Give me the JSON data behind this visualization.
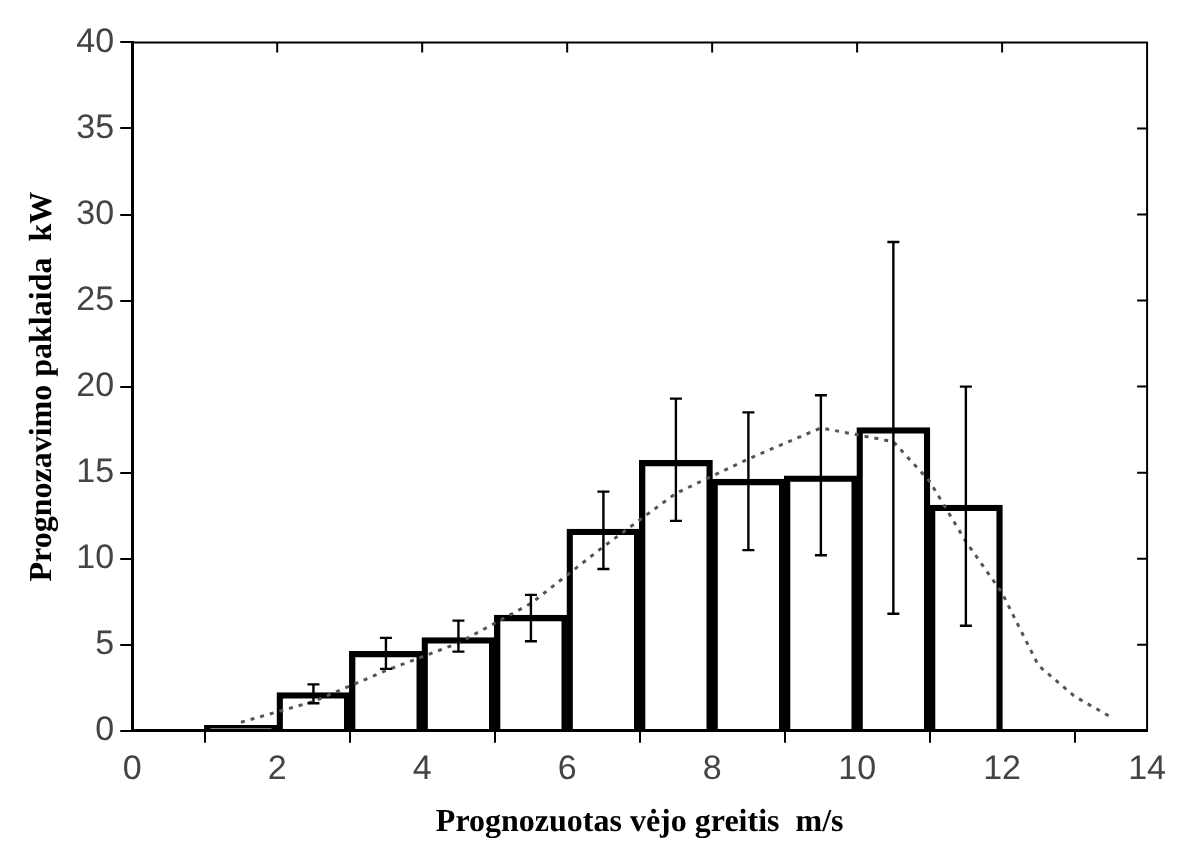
{
  "chart_data": {
    "type": "bar",
    "xlabel": "Prognozuotas vėjo greitis  m/s",
    "ylabel": "Prognozavimo paklaida  kW",
    "series": [
      {
        "color": "#000000",
        "x": [
          1.5,
          2.5,
          3.5,
          4.5,
          5.5,
          6.5,
          7.5,
          8.5,
          9.5,
          10.5,
          11.5
        ],
        "values": [
          0.3,
          2.2,
          4.6,
          5.4,
          6.7,
          11.7,
          15.7,
          14.6,
          14.8,
          17.6,
          13.1
        ],
        "errors": [
          null,
          [
            1.6,
            2.7
          ],
          [
            3.6,
            5.4
          ],
          [
            4.6,
            6.4
          ],
          [
            5.2,
            7.9
          ],
          [
            9.4,
            13.9
          ],
          [
            12.2,
            19.3
          ],
          [
            10.5,
            18.5
          ],
          [
            10.2,
            19.5
          ],
          [
            6.8,
            28.4
          ],
          [
            6.1,
            20
          ]
        ]
      },
      {
        "type": "line",
        "color": "#555555",
        "line_style": "dotted",
        "marker": "none",
        "x": [
          1.5,
          2.5,
          3.5,
          4.5,
          5.5,
          6.5,
          7.5,
          8.5,
          9.5,
          10.5,
          11,
          11.5,
          12,
          12.5,
          13,
          13.5
        ],
        "values": [
          0.5,
          1.7,
          3.5,
          5.1,
          7.4,
          10.7,
          13.8,
          15.8,
          17.6,
          16.8,
          14.5,
          11,
          8,
          3.8,
          2,
          0.8
        ]
      }
    ],
    "xlim": [
      0,
      14
    ],
    "xticks": [
      0,
      2,
      4,
      6,
      8,
      10,
      12,
      14
    ],
    "ylim": [
      0,
      40
    ],
    "yticks": [
      0,
      5,
      10,
      15,
      20,
      25,
      30,
      35,
      40
    ],
    "grid": false,
    "legend": false
  }
}
